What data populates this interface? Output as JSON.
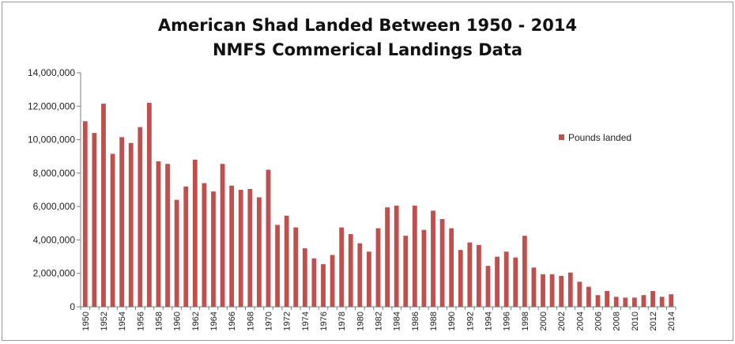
{
  "chart_data": {
    "type": "bar",
    "title": "American Shad Landed Between 1950 - 2014",
    "subtitle": "NMFS Commerical Landings Data",
    "xlabel": "",
    "ylabel": "",
    "ylim": [
      0,
      14000000
    ],
    "yticks": [
      "0",
      "2,000,000",
      "4,000,000",
      "6,000,000",
      "8,000,000",
      "10,000,000",
      "12,000,000",
      "14,000,000"
    ],
    "grid": false,
    "legend_position": "right",
    "bar_color": "#c0504d",
    "series": [
      {
        "name": "Pounds landed",
        "values": [
          11100000,
          10400000,
          12150000,
          9150000,
          10150000,
          9800000,
          10750000,
          12200000,
          8700000,
          8550000,
          6400000,
          7200000,
          8800000,
          7400000,
          6900000,
          8550000,
          7250000,
          7000000,
          7050000,
          6550000,
          8200000,
          4900000,
          5450000,
          4750000,
          3500000,
          2900000,
          2550000,
          3100000,
          4750000,
          4350000,
          3800000,
          3300000,
          4700000,
          5950000,
          6050000,
          4250000,
          6050000,
          4600000,
          5750000,
          5250000,
          4700000,
          3400000,
          3850000,
          3700000,
          2450000,
          3000000,
          3300000,
          2950000,
          4250000,
          2350000,
          1950000,
          1950000,
          1850000,
          2050000,
          1500000,
          1200000,
          700000,
          950000,
          600000,
          550000,
          550000,
          700000,
          950000,
          600000,
          750000
        ]
      }
    ],
    "x": [
      1950,
      1951,
      1952,
      1953,
      1954,
      1955,
      1956,
      1957,
      1958,
      1959,
      1960,
      1961,
      1962,
      1963,
      1964,
      1965,
      1966,
      1967,
      1968,
      1969,
      1970,
      1971,
      1972,
      1973,
      1974,
      1975,
      1976,
      1977,
      1978,
      1979,
      1980,
      1981,
      1982,
      1983,
      1984,
      1985,
      1986,
      1987,
      1988,
      1989,
      1990,
      1991,
      1992,
      1993,
      1994,
      1995,
      1996,
      1997,
      1998,
      1999,
      2000,
      2001,
      2002,
      2003,
      2004,
      2005,
      2006,
      2007,
      2008,
      2009,
      2010,
      2011,
      2012,
      2013,
      2014
    ],
    "xtick_labels": [
      "1950",
      "1952",
      "1954",
      "1956",
      "1958",
      "1960",
      "1962",
      "1964",
      "1966",
      "1968",
      "1970",
      "1972",
      "1974",
      "1976",
      "1978",
      "1980",
      "1982",
      "1984",
      "1986",
      "1988",
      "1990",
      "1992",
      "1994",
      "1996",
      "1998",
      "2000",
      "2002",
      "2004",
      "2006",
      "2008",
      "2010",
      "2012",
      "2014"
    ]
  }
}
